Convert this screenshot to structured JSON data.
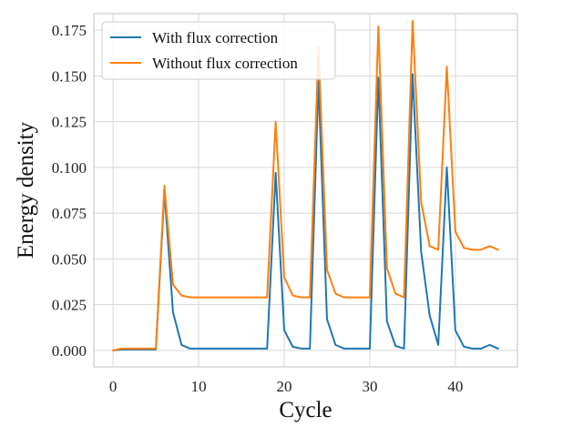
{
  "chart_data": {
    "type": "line",
    "title": "",
    "xlabel": "Cycle",
    "ylabel": "Energy density",
    "xlim": [
      -2.25,
      47.25
    ],
    "ylim": [
      -0.009,
      0.184
    ],
    "grid": true,
    "legend_position": "top-left",
    "x_ticks": [
      0,
      10,
      20,
      30,
      40
    ],
    "x_tick_labels": [
      "0",
      "10",
      "20",
      "30",
      "40"
    ],
    "y_ticks": [
      0.0,
      0.025,
      0.05,
      0.075,
      0.1,
      0.125,
      0.15,
      0.175
    ],
    "y_tick_labels": [
      "0.000",
      "0.025",
      "0.050",
      "0.075",
      "0.100",
      "0.125",
      "0.150",
      "0.175"
    ],
    "x": [
      0,
      1,
      2,
      3,
      4,
      5,
      6,
      7,
      8,
      9,
      10,
      11,
      12,
      13,
      14,
      15,
      16,
      17,
      18,
      19,
      20,
      21,
      22,
      23,
      24,
      25,
      26,
      27,
      28,
      29,
      30,
      31,
      32,
      33,
      34,
      35,
      36,
      37,
      38,
      39,
      40,
      41,
      42,
      43,
      44,
      45
    ],
    "series": [
      {
        "name": "With flux correction",
        "color": "#1f77b4",
        "values": [
          0.0,
          0.0005,
          0.0005,
          0.0005,
          0.0005,
          0.0005,
          0.087,
          0.021,
          0.003,
          0.001,
          0.001,
          0.001,
          0.001,
          0.001,
          0.001,
          0.001,
          0.001,
          0.001,
          0.001,
          0.097,
          0.011,
          0.002,
          0.001,
          0.001,
          0.147,
          0.017,
          0.003,
          0.001,
          0.001,
          0.001,
          0.001,
          0.149,
          0.016,
          0.0025,
          0.001,
          0.151,
          0.054,
          0.019,
          0.003,
          0.1,
          0.011,
          0.002,
          0.001,
          0.001,
          0.003,
          0.001
        ]
      },
      {
        "name": "Without flux correction",
        "color": "#ff7f0e",
        "values": [
          0.0,
          0.001,
          0.001,
          0.001,
          0.001,
          0.001,
          0.09,
          0.036,
          0.03,
          0.029,
          0.029,
          0.029,
          0.029,
          0.029,
          0.029,
          0.029,
          0.029,
          0.029,
          0.029,
          0.125,
          0.04,
          0.03,
          0.029,
          0.029,
          0.166,
          0.044,
          0.031,
          0.029,
          0.029,
          0.029,
          0.029,
          0.177,
          0.045,
          0.031,
          0.029,
          0.18,
          0.081,
          0.057,
          0.055,
          0.155,
          0.065,
          0.056,
          0.055,
          0.055,
          0.057,
          0.055
        ]
      }
    ]
  }
}
